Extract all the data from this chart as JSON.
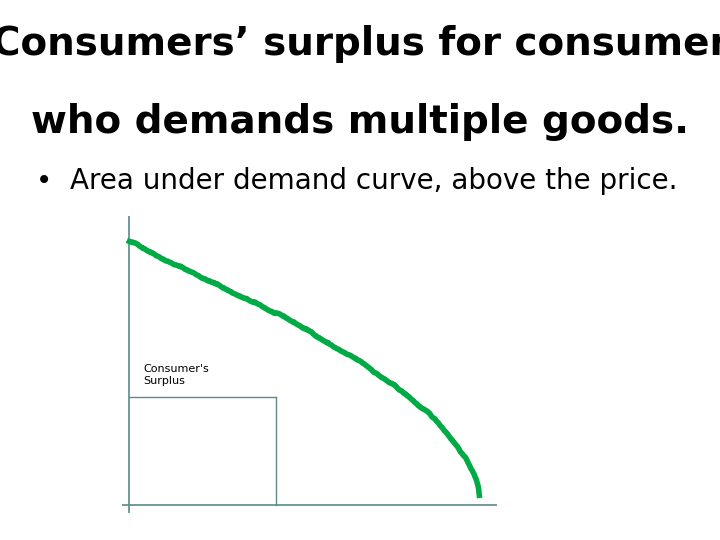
{
  "title_line1": "Consumers’ surplus for consumer",
  "title_line2": "who demands multiple goods.",
  "bullet": "•  Area under demand curve, above the price.",
  "title_fontsize": 28,
  "bullet_fontsize": 20,
  "curve_color": "#00aa44",
  "curve_linewidth": 4,
  "axes_color": "#5a8a8a",
  "box_color": "#5a8a8a",
  "label_text": "Consumer's\nSurplus",
  "label_fontsize": 8,
  "background_color": "#ffffff",
  "price_level": 0.38,
  "quantity_level": 0.42,
  "noise_seed": 42,
  "noise_scale": 0.003,
  "noise_weight": 0.3
}
